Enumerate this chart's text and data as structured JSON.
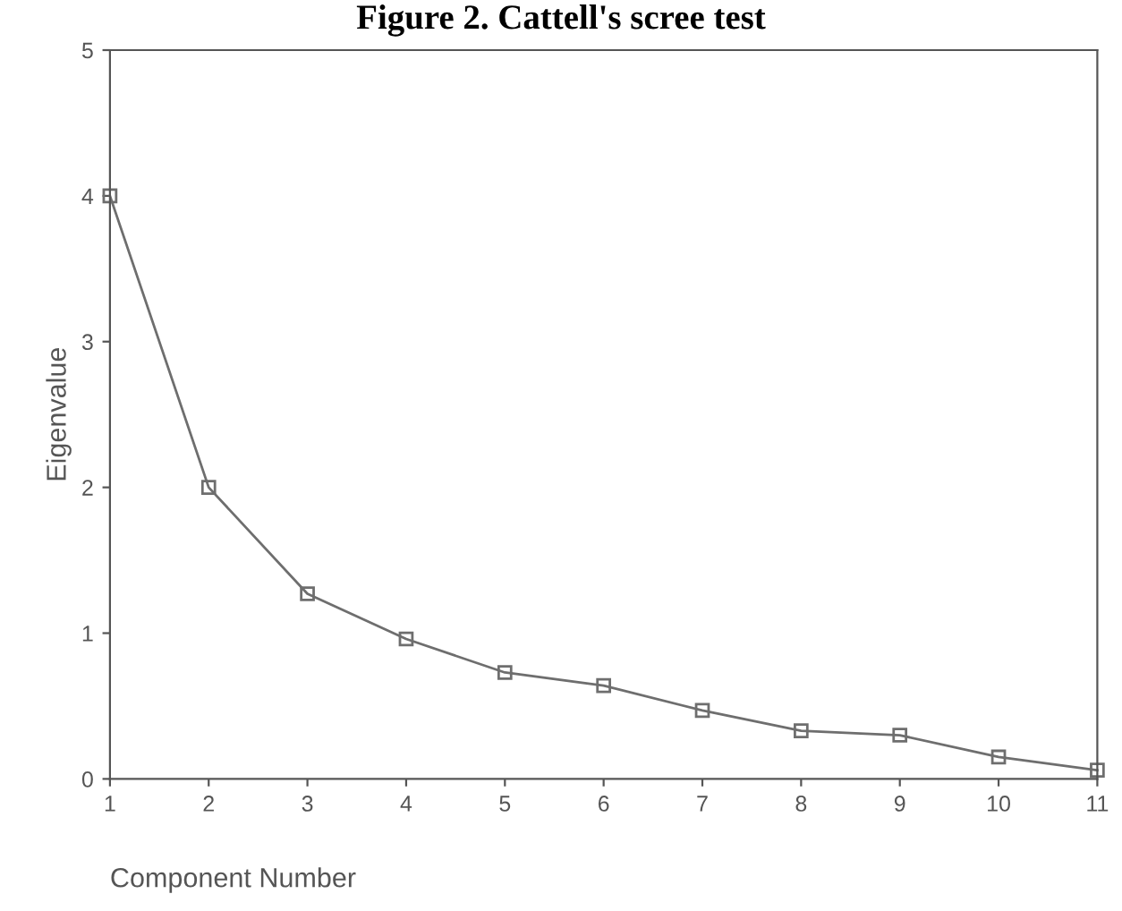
{
  "chart_data": {
    "type": "line",
    "title": "Figure 2. Cattell's scree test",
    "xlabel": "Component Number",
    "ylabel": "Eigenvalue",
    "x": [
      1,
      2,
      3,
      4,
      5,
      6,
      7,
      8,
      9,
      10,
      11
    ],
    "series": [
      {
        "color": "#6e6e6e",
        "values": [
          4.0,
          2.0,
          1.27,
          0.96,
          0.73,
          0.64,
          0.47,
          0.33,
          0.3,
          0.15,
          0.06
        ]
      }
    ],
    "xlim": [
      1,
      11
    ],
    "xticks": [
      1,
      2,
      3,
      4,
      5,
      6,
      7,
      8,
      9,
      10,
      11
    ],
    "ylim": [
      0,
      5
    ],
    "yticks": [
      0,
      1,
      2,
      3,
      4,
      5
    ],
    "marker": "square",
    "line_style": "solid",
    "grid": false,
    "legend": false
  }
}
